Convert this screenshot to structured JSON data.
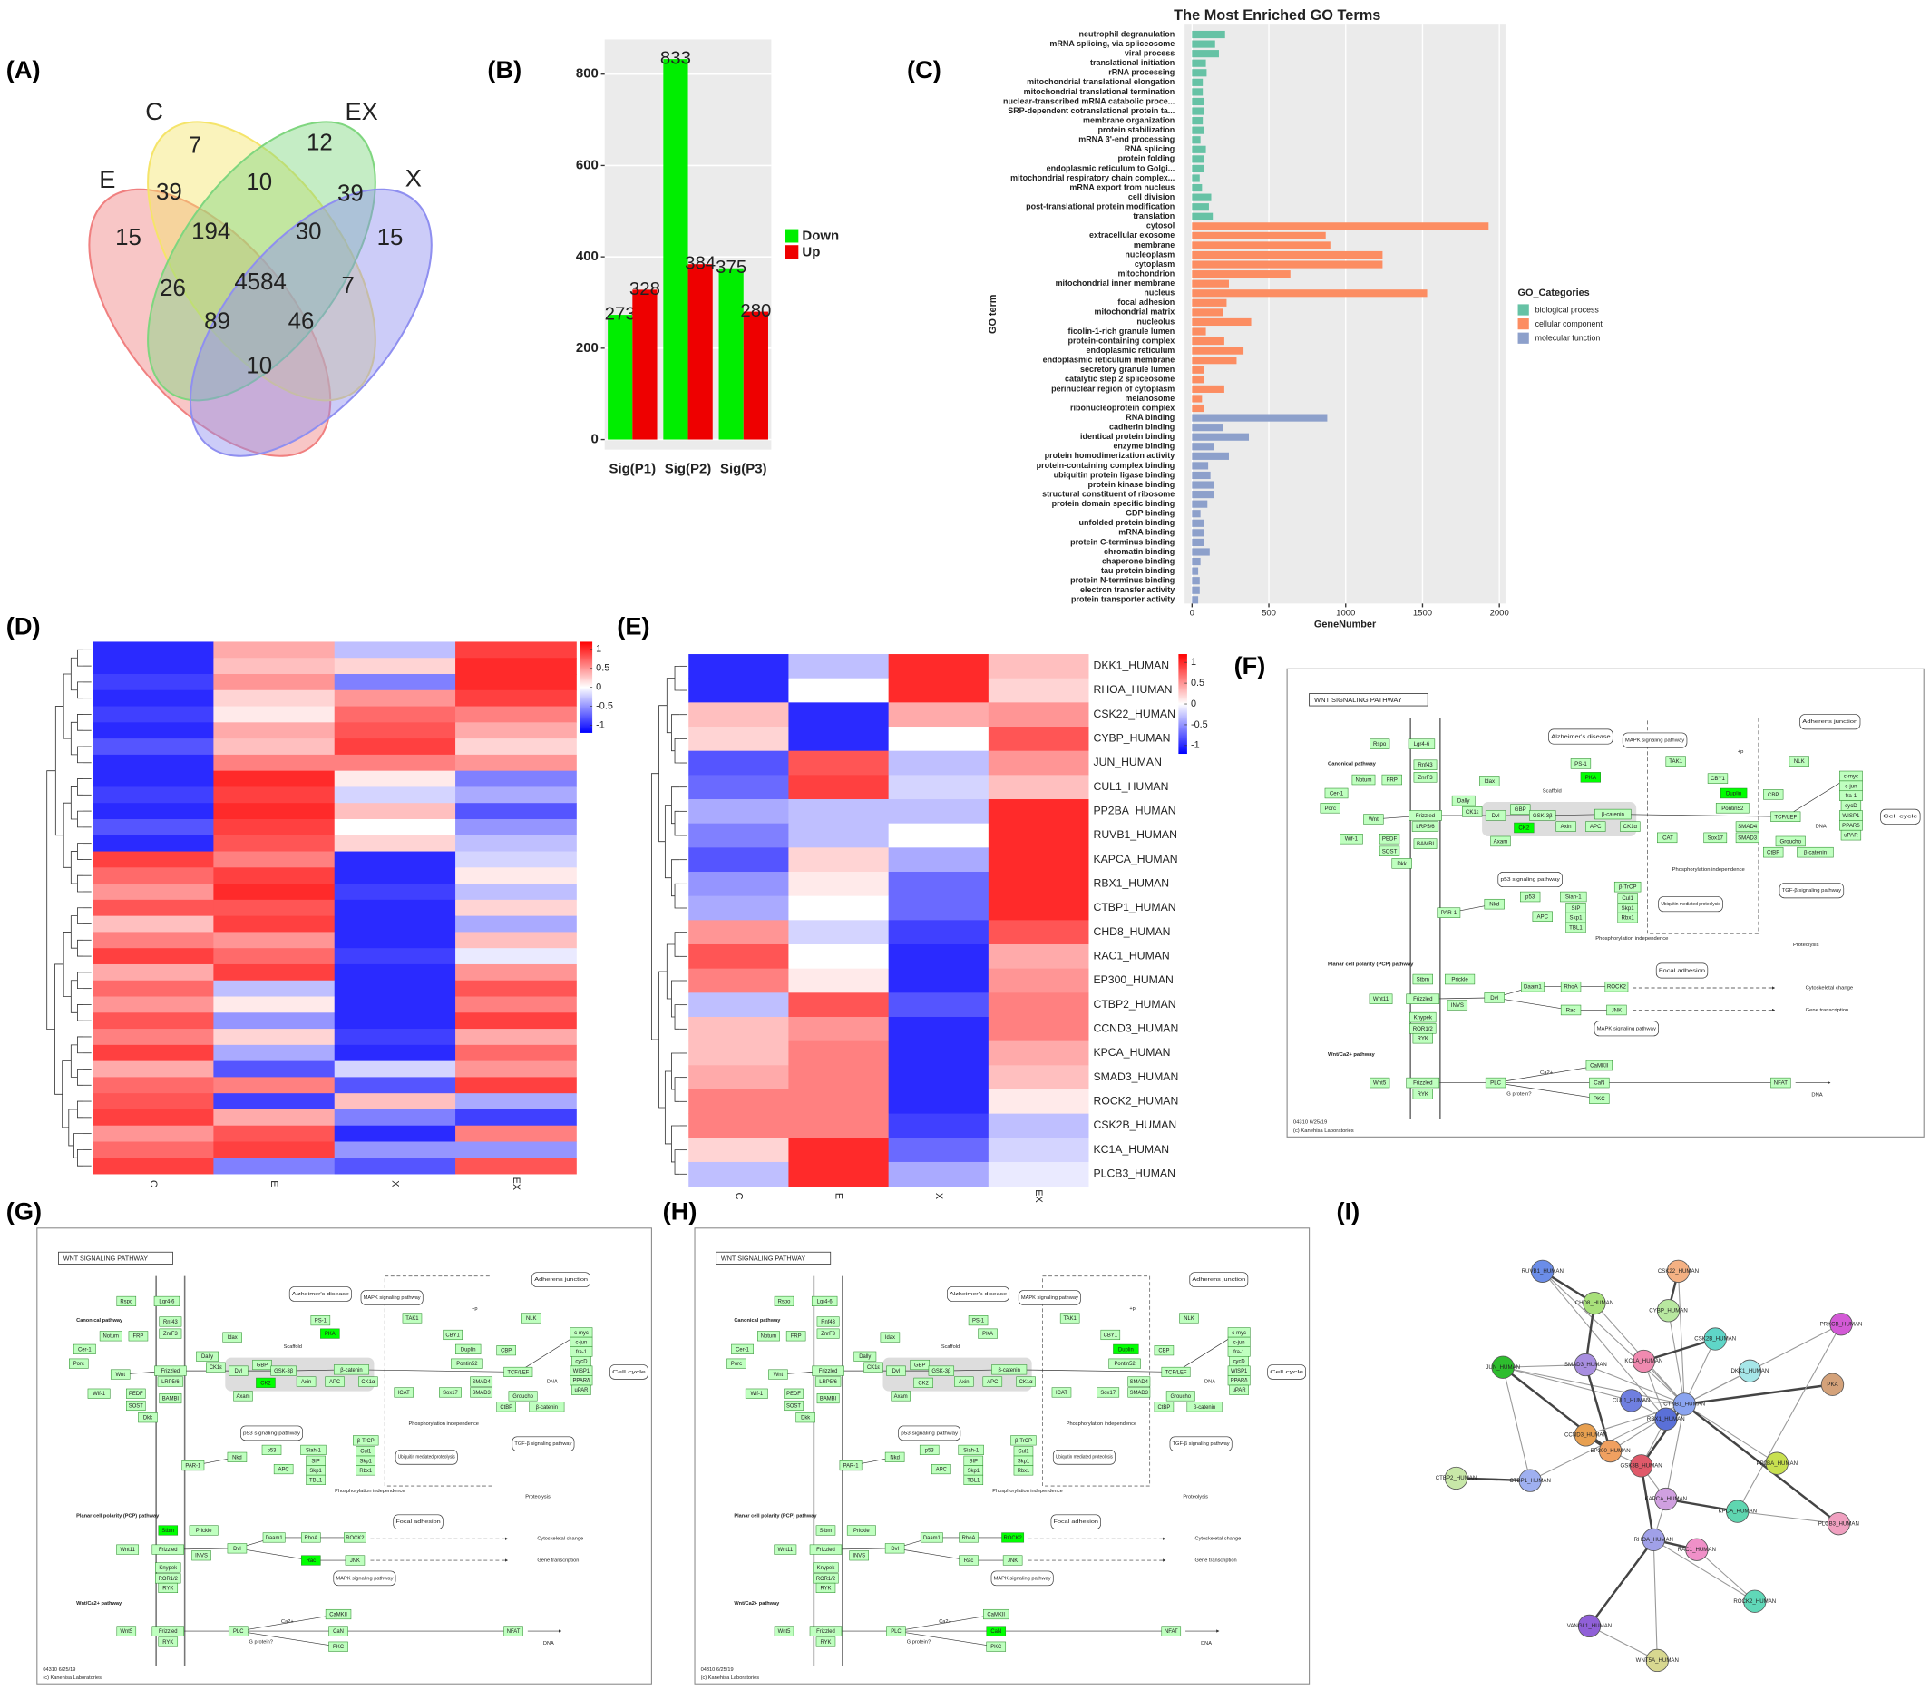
{
  "panel_labels": [
    "(A)",
    "(B)",
    "(C)",
    "(D)",
    "(E)",
    "(F)",
    "(G)",
    "(H)",
    "(I)"
  ],
  "chart_data": [
    {
      "type": "venn",
      "sets": [
        "E",
        "C",
        "EX",
        "X"
      ],
      "colors": [
        "#f08080",
        "#f5e46a",
        "#7fd67f",
        "#8f8ff0"
      ],
      "values": [
        7,
        12,
        39,
        10,
        39,
        15,
        194,
        30,
        15,
        26,
        4584,
        7,
        89,
        46,
        10
      ]
    },
    {
      "type": "bar",
      "categories": [
        "Sig(P1)",
        "Sig(P2)",
        "Sig(P3)"
      ],
      "series": [
        {
          "name": "Down",
          "color": "#00ee00",
          "values": [
            273,
            833,
            375
          ]
        },
        {
          "name": "Up",
          "color": "#ee0000",
          "values": [
            328,
            384,
            280
          ]
        }
      ],
      "ylim": [
        -22,
        876
      ],
      "yticks": [
        0,
        200,
        400,
        600,
        800
      ],
      "grid": true
    },
    {
      "type": "hbar",
      "title": "The Most Enriched GO Terms",
      "xlabel": "GeneNumber",
      "ylabel": "GO term",
      "legend_title": "GO_Categories",
      "xlim": [
        -48,
        2040
      ],
      "xticks": [
        0,
        500,
        1000,
        1500,
        2000
      ],
      "grid": true,
      "series": [
        {
          "name": "biological process",
          "color": "#66c2a5",
          "categories": [
            "neutrophil degranulation",
            "mRNA splicing, via spliceosome",
            "viral process",
            "translational initiation",
            "rRNA processing",
            "mitochondrial translational elongation",
            "mitochondrial translational termination",
            "nuclear-transcribed mRNA catabolic proce...",
            "SRP-dependent cotranslational protein ta...",
            "membrane organization",
            "protein stabilization",
            "mRNA 3'-end processing",
            "RNA splicing",
            "protein folding",
            "endoplasmic reticulum to Golgi...",
            "mitochondrial respiratory chain complex...",
            "mRNA export from nucleus",
            "cell division",
            "post-translational protein modification",
            "translation"
          ],
          "values": [
            215,
            150,
            175,
            90,
            95,
            70,
            70,
            80,
            75,
            70,
            80,
            55,
            90,
            80,
            80,
            50,
            65,
            125,
            110,
            135
          ]
        },
        {
          "name": "cellular component",
          "color": "#fc8d62",
          "categories": [
            "cytosol",
            "extracellular exosome",
            "membrane",
            "nucleoplasm",
            "cytoplasm",
            "mitochondrion",
            "mitochondrial inner membrane",
            "nucleus",
            "focal adhesion",
            "mitochondrial matrix",
            "nucleolus",
            "ficolin-1-rich granule lumen",
            "protein-containing complex",
            "endoplasmic reticulum",
            "endoplasmic reticulum membrane",
            "secretory granule lumen",
            "catalytic step 2 spliceosome",
            "perinuclear region of cytoplasm",
            "melanosome",
            "ribonucleoprotein complex"
          ],
          "values": [
            1930,
            870,
            900,
            1240,
            1240,
            640,
            240,
            1530,
            225,
            200,
            385,
            90,
            210,
            335,
            290,
            75,
            75,
            210,
            65,
            75
          ]
        },
        {
          "name": "molecular function",
          "color": "#8da0cb",
          "categories": [
            "RNA binding",
            "cadherin binding",
            "identical protein binding",
            "enzyme binding",
            "protein homodimerization activity",
            "protein-containing complex binding",
            "ubiquitin protein ligase binding",
            "protein kinase binding",
            "structural constituent of ribosome",
            "protein domain specific binding",
            "GDP binding",
            "unfolded protein binding",
            "mRNA binding",
            "protein C-terminus binding",
            "chromatin binding",
            "chaperone binding",
            "tau protein binding",
            "protein N-terminus binding",
            "electron transfer activity",
            "protein transporter activity"
          ],
          "values": [
            880,
            200,
            370,
            140,
            240,
            105,
            120,
            145,
            140,
            100,
            55,
            75,
            75,
            80,
            115,
            55,
            40,
            50,
            50,
            40
          ]
        }
      ]
    },
    {
      "type": "heatmap",
      "columns": [
        "C",
        "E",
        "X",
        "EX"
      ],
      "clim": [
        -1.2,
        1.2
      ],
      "colorbar_ticks": [
        1,
        0.5,
        0,
        -0.5,
        -1
      ],
      "values": [
        [
          -1,
          0.4,
          -0.3,
          0.9
        ],
        [
          -1,
          0.3,
          0.2,
          1
        ],
        [
          -0.9,
          0.5,
          -0.6,
          1
        ],
        [
          -1,
          0.2,
          0.5,
          0.9
        ],
        [
          -0.9,
          0.1,
          0.7,
          0.6
        ],
        [
          -1,
          0.4,
          0.8,
          0.4
        ],
        [
          -0.8,
          0.3,
          0.9,
          0.2
        ],
        [
          -1,
          0.6,
          0.6,
          0.5
        ],
        [
          -1,
          1,
          0.1,
          -0.6
        ],
        [
          -0.9,
          0.9,
          -0.2,
          -0.4
        ],
        [
          -1,
          1,
          0.3,
          -0.8
        ],
        [
          -0.8,
          0.9,
          0,
          -0.5
        ],
        [
          -1,
          0.8,
          0.2,
          -0.3
        ],
        [
          0.9,
          0.6,
          -1,
          -0.2
        ],
        [
          0.7,
          0.9,
          -1,
          0.1
        ],
        [
          0.5,
          1,
          -0.9,
          -0.3
        ],
        [
          0.8,
          0.8,
          -1,
          0.2
        ],
        [
          0.3,
          0.9,
          -1,
          -0.4
        ],
        [
          0.6,
          0.5,
          -1,
          0.3
        ],
        [
          0.9,
          0.7,
          -0.9,
          -0.1
        ],
        [
          0.4,
          0.9,
          -1,
          0.5
        ],
        [
          0.7,
          -0.3,
          -1,
          0.8
        ],
        [
          0.5,
          0.1,
          -1,
          0.6
        ],
        [
          0.8,
          -0.5,
          -1,
          0.9
        ],
        [
          0.6,
          0.2,
          -0.9,
          0.4
        ],
        [
          0.9,
          -0.4,
          -1,
          0.7
        ],
        [
          0.4,
          -0.8,
          -0.2,
          0.5
        ],
        [
          0.7,
          0.6,
          -0.8,
          0.9
        ],
        [
          0.8,
          -0.9,
          0.3,
          -0.4
        ],
        [
          0.9,
          0.4,
          -0.6,
          -0.9
        ],
        [
          0.5,
          0.8,
          -1,
          0.6
        ],
        [
          0.7,
          0.9,
          -0.5,
          -0.5
        ],
        [
          0.9,
          -0.6,
          -0.8,
          0.8
        ]
      ]
    },
    {
      "type": "heatmap",
      "columns": [
        "C",
        "E",
        "X",
        "EX"
      ],
      "clim": [
        -1.2,
        1.2
      ],
      "colorbar_ticks": [
        1,
        0.5,
        0,
        -0.5,
        -1
      ],
      "rows": [
        "DKK1_HUMAN",
        "RHOA_HUMAN",
        "CSK22_HUMAN",
        "CYBP_HUMAN",
        "JUN_HUMAN",
        "CUL1_HUMAN",
        "PP2BA_HUMAN",
        "RUVB1_HUMAN",
        "KAPCA_HUMAN",
        "RBX1_HUMAN",
        "CTBP1_HUMAN",
        "CHD8_HUMAN",
        "RAC1_HUMAN",
        "EP300_HUMAN",
        "CTBP2_HUMAN",
        "CCND3_HUMAN",
        "KPCA_HUMAN",
        "SMAD3_HUMAN",
        "ROCK2_HUMAN",
        "CSK2B_HUMAN",
        "KC1A_HUMAN",
        "PLCB3_HUMAN"
      ],
      "values": [
        [
          -1,
          -0.3,
          1,
          0.3
        ],
        [
          -1,
          0,
          1,
          0.2
        ],
        [
          0.3,
          -1,
          0.4,
          0.5
        ],
        [
          0.2,
          -1,
          0,
          0.8
        ],
        [
          -0.8,
          0.8,
          -0.3,
          0.5
        ],
        [
          -0.7,
          0.9,
          -0.2,
          0.3
        ],
        [
          -0.4,
          -0.3,
          -0.3,
          1
        ],
        [
          -0.6,
          -0.3,
          0,
          1
        ],
        [
          -0.8,
          0.2,
          -0.4,
          1
        ],
        [
          -0.5,
          0.1,
          -0.7,
          1
        ],
        [
          -0.4,
          0,
          -0.7,
          1
        ],
        [
          0.5,
          -0.2,
          -0.9,
          0.8
        ],
        [
          0.8,
          0,
          -1,
          0.4
        ],
        [
          0.6,
          0.1,
          -1,
          0.5
        ],
        [
          -0.3,
          0.8,
          -0.8,
          0.6
        ],
        [
          0.3,
          0.5,
          -1,
          0.6
        ],
        [
          0.3,
          0.6,
          -1,
          0.4
        ],
        [
          0.4,
          0.6,
          -1,
          0.3
        ],
        [
          0.6,
          0.6,
          -1,
          0.1
        ],
        [
          0.6,
          0.6,
          -0.9,
          -0.3
        ],
        [
          0.2,
          1,
          -0.7,
          -0.2
        ],
        [
          -0.3,
          1,
          -0.4,
          -0.1
        ]
      ]
    }
  ],
  "pathway": {
    "title": "WNT SIGNALING PATHWAY",
    "nodes": [
      "Rspo",
      "Lgr4-6",
      "Rnf43",
      "ZnrF3",
      "Cer-1",
      "Notum",
      "FRP",
      "Porc",
      "Wnt",
      "Frizzled",
      "LRP5/6",
      "Wif-1",
      "PEDF",
      "SOST",
      "Dkk",
      "BAMBI",
      "Dally",
      "CK1ε",
      "Idax",
      "Dvl",
      "GBP",
      "CK2",
      "Axam",
      "GSK-3β",
      "Axin",
      "APC",
      "CK1α",
      "β-catenin",
      "PS-1",
      "PKA",
      "TAK1",
      "NLK",
      "CBY1",
      "Duplin",
      "Pontin52",
      "CBP",
      "TCF/LEF",
      "SMAD4",
      "SMAD3",
      "Sox17",
      "ICAT",
      "Groucho",
      "CtBP",
      "β-catenin",
      "c-myc",
      "c-jun",
      "fra-1",
      "cycD",
      "WISP1",
      "PPARδ",
      "uPAR",
      "Siah-1",
      "SIP",
      "Skp1",
      "TBL1",
      "p53",
      "APC",
      "β-TrCP",
      "Cul1",
      "Skp1",
      "Rbx1",
      "PAR-1",
      "Nkd",
      "Stbm",
      "Prickle",
      "Wnt11",
      "Frizzled",
      "INVS",
      "Knypek",
      "ROR1/2",
      "RYK",
      "Dvl",
      "Daam1",
      "RhoA",
      "ROCK2",
      "Rac",
      "JNK",
      "Wnt5",
      "Frizzled",
      "RYK",
      "PLC",
      "CaMKII",
      "CaN",
      "PKC",
      "NFAT"
    ],
    "links": [
      "Alzheimer's disease",
      "MAPK signaling pathway",
      "Adherens junction",
      "p53 signaling pathway",
      "Ubiquitin mediated proteolysis",
      "TGF-β signaling pathway",
      "Focal adhesion",
      "MAPK signaling pathway",
      "Cell cycle"
    ],
    "notes": [
      "Canonical pathway",
      "Scaffold",
      "Phosphorylation independence",
      "Phosphorylation independence",
      "Proteolysis",
      "DNA",
      "Planar cell polarity (PCP) pathway",
      "Cytoskeletal change",
      "Gene transcription",
      "Wnt/Ca2+ pathway",
      "G protein?",
      "Ca2+",
      "DNA",
      "+p",
      "04310 6/25/19",
      "(c) Kanehisa Laboratories"
    ]
  },
  "pathway_panels": [
    {
      "highlight": [
        29,
        33,
        21
      ]
    },
    {
      "highlight": [
        29,
        21,
        63,
        75
      ]
    },
    {
      "highlight": [
        33,
        74,
        82
      ]
    }
  ],
  "network": {
    "nodes": [
      "RUVB1_HUMAN",
      "CSK22_HUMAN",
      "CHD8_HUMAN",
      "CYBP_HUMAN",
      "CSK2B_HUMAN",
      "PRKCB_HUMAN",
      "JUN_HUMAN",
      "SMAD3_HUMAN",
      "KC1A_HUMAN",
      "DKK1_HUMAN",
      "PKA",
      "CUL1_HUMAN",
      "CTNB1_HUMAN",
      "RBX1_HUMAN",
      "CCND3_HUMAN",
      "EP300_HUMAN",
      "GSK3B_HUMAN",
      "PP2BA_HUMAN",
      "CTBP2_HUMAN",
      "CTBP1_HUMAN",
      "KAPCA_HUMAN",
      "KPCA_HUMAN",
      "PLCB3_HUMAN",
      "RHOA_HUMAN",
      "RAC1_HUMAN",
      "ROCK2_HUMAN",
      "VANGL1_HUMAN",
      "WNT5A_HUMAN"
    ]
  }
}
